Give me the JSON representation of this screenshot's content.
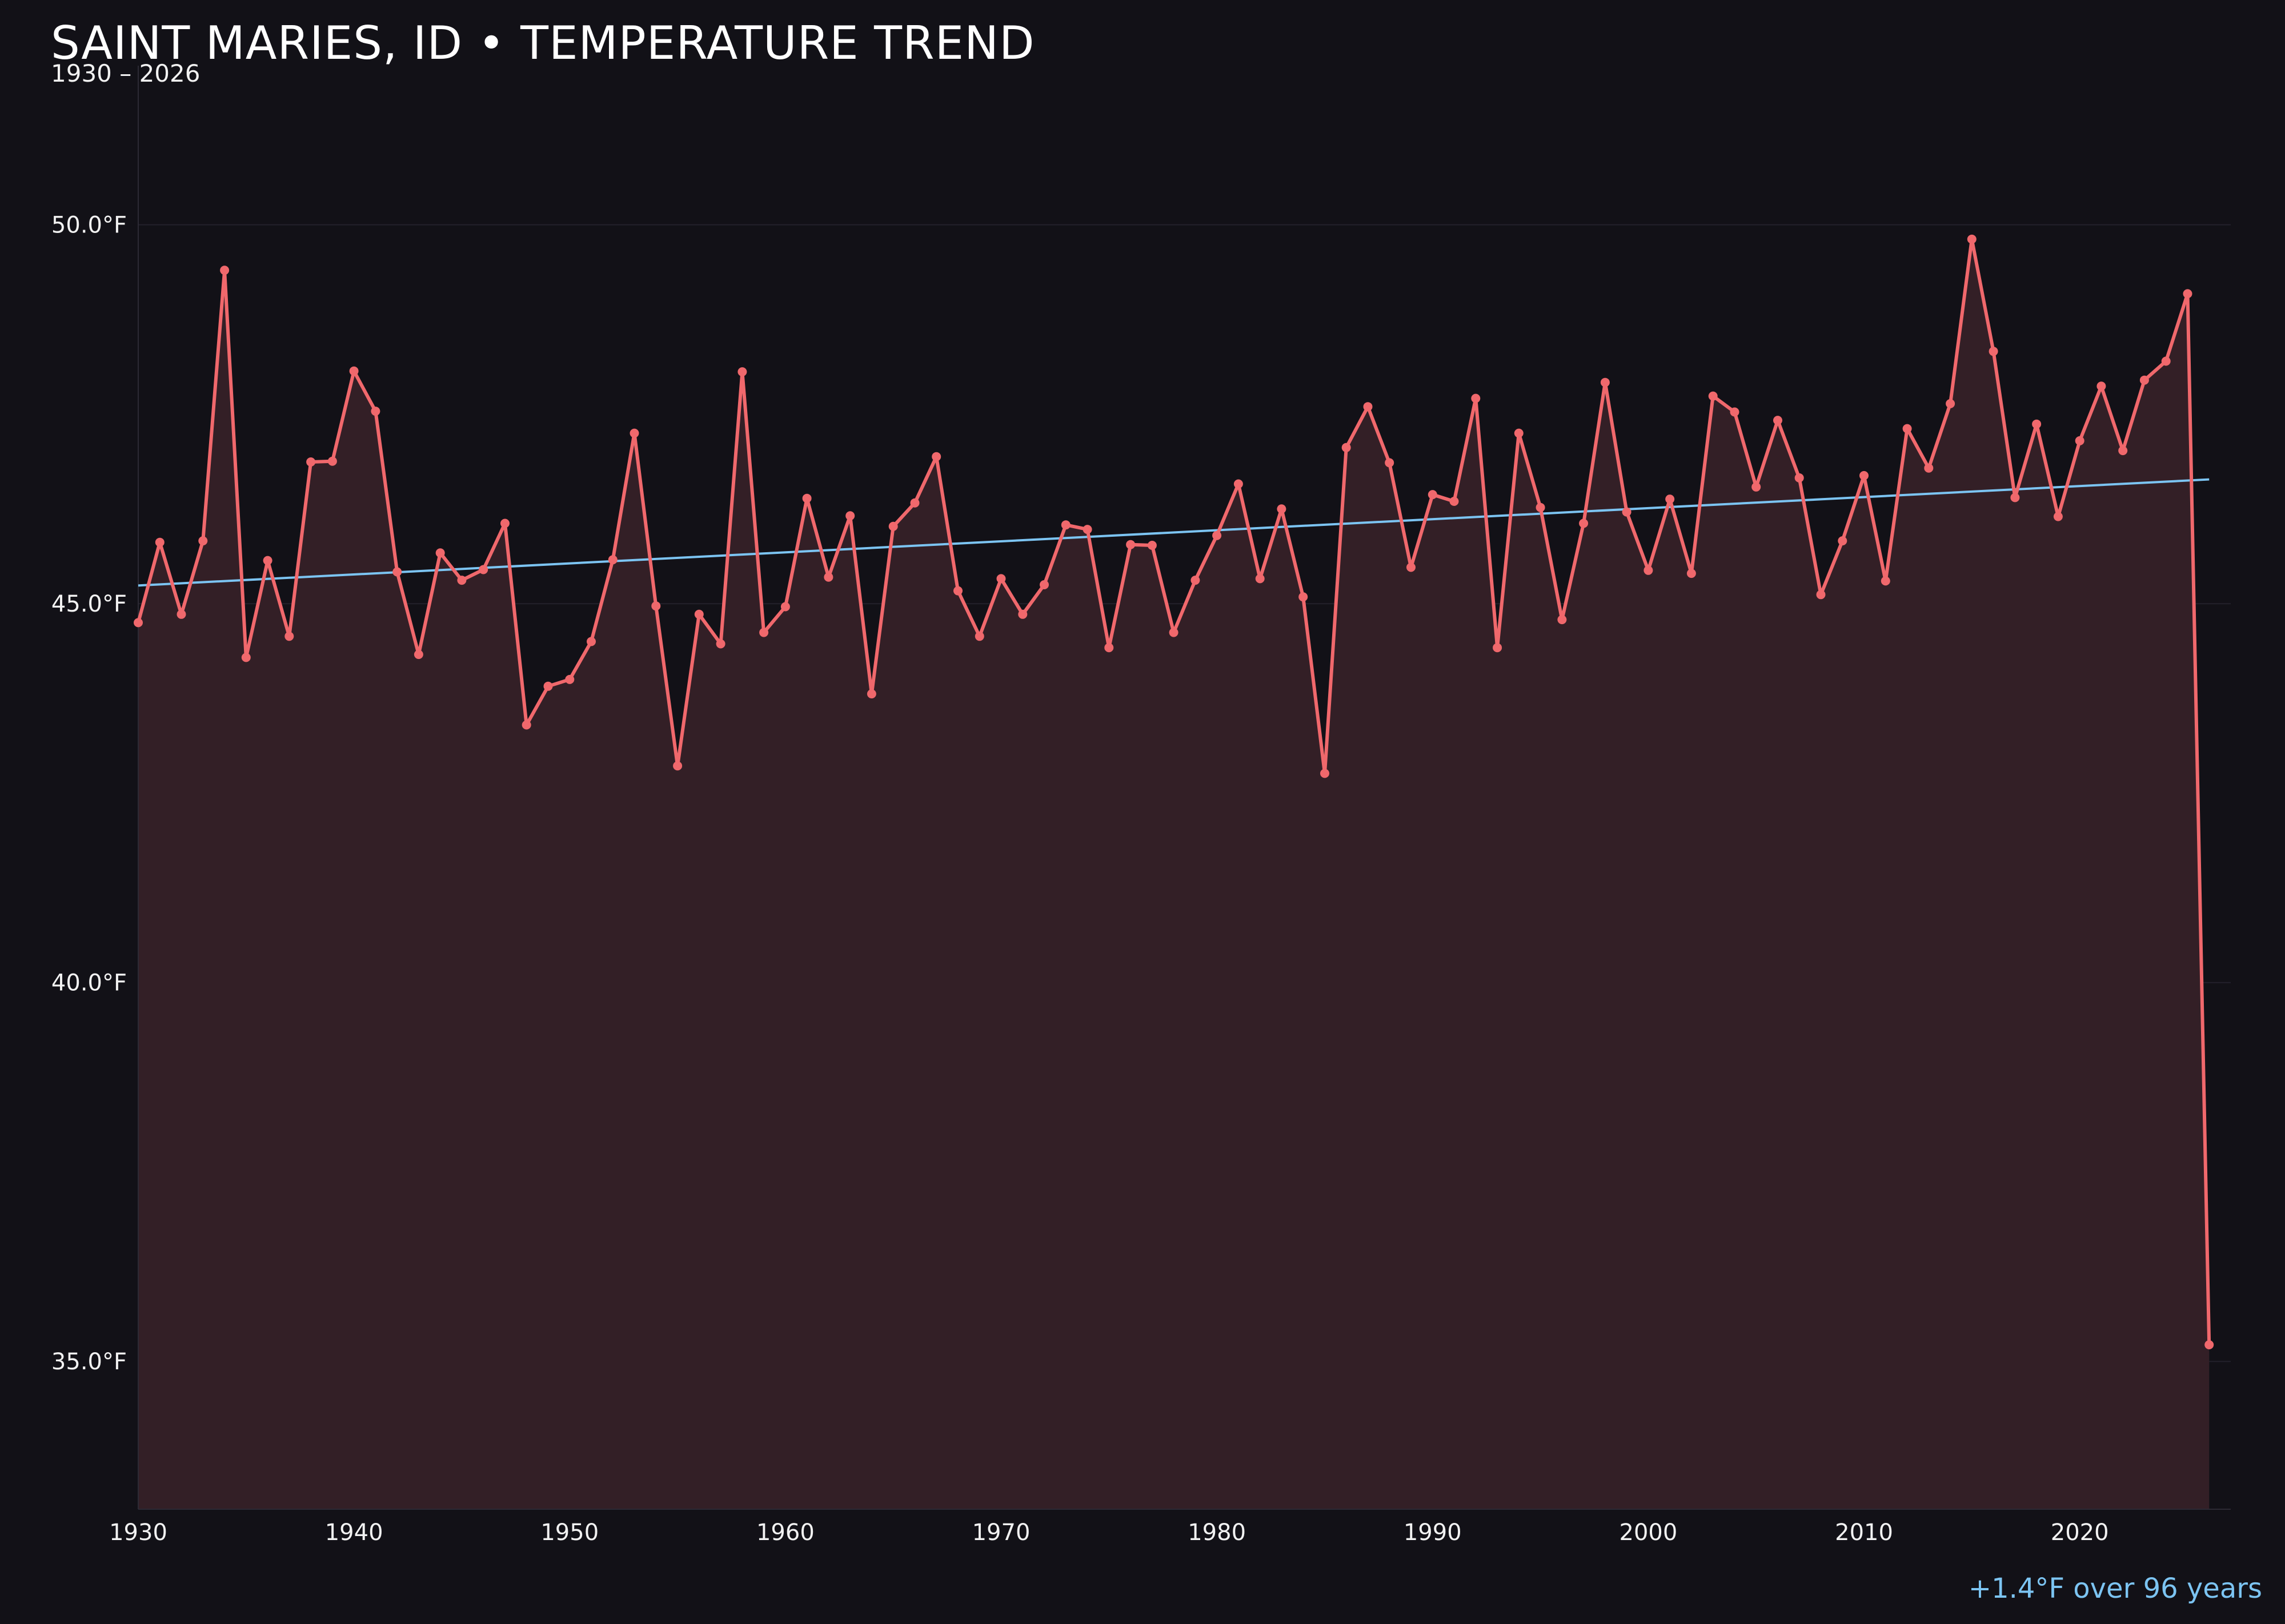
{
  "header": {
    "title": "SAINT MARIES, ID • TEMPERATURE TREND",
    "subtitle": "1930 – 2026"
  },
  "annotation": "+1.4°F over 96 years",
  "colors": {
    "background": "#121117",
    "series": "#f0686c",
    "area_fill": "#331f26",
    "trend": "#7cc4f2",
    "grid": "#23212b"
  },
  "chart_data": {
    "type": "line",
    "title": "SAINT MARIES, ID • TEMPERATURE TREND",
    "subtitle": "1930 – 2026",
    "xlabel": "",
    "ylabel": "",
    "xlim": [
      1930,
      2027
    ],
    "ylim": [
      33.05,
      52.1
    ],
    "x_ticks": [
      1930,
      1940,
      1950,
      1960,
      1970,
      1980,
      1990,
      2000,
      2010,
      2020
    ],
    "y_ticks": [
      35.0,
      40.0,
      45.0,
      50.0
    ],
    "y_tick_labels": [
      "35.0°F",
      "40.0°F",
      "45.0°F",
      "50.0°F"
    ],
    "grid": "horizontal",
    "area_fill": true,
    "series": [
      {
        "x": [
          1930,
          1931,
          1932,
          1933,
          1934,
          1935,
          1936,
          1937,
          1938,
          1939,
          1940,
          1941,
          1942,
          1943,
          1944,
          1945,
          1946,
          1947,
          1948,
          1949,
          1950,
          1951,
          1952,
          1953,
          1954,
          1955,
          1956,
          1957,
          1958,
          1959,
          1960,
          1961,
          1962,
          1963,
          1964,
          1965,
          1966,
          1967,
          1968,
          1969,
          1970,
          1971,
          1972,
          1973,
          1974,
          1975,
          1976,
          1977,
          1978,
          1979,
          1980,
          1981,
          1982,
          1983,
          1984,
          1985,
          1986,
          1987,
          1988,
          1989,
          1990,
          1991,
          1992,
          1993,
          1994,
          1995,
          1996,
          1997,
          1998,
          1999,
          2000,
          2001,
          2002,
          2003,
          2004,
          2005,
          2006,
          2007,
          2008,
          2009,
          2010,
          2011,
          2012,
          2013,
          2014,
          2015,
          2016,
          2017,
          2018,
          2019,
          2020,
          2021,
          2022,
          2023,
          2024,
          2025,
          2026
        ],
        "values": [
          44.75,
          45.81,
          44.86,
          45.83,
          49.4,
          44.29,
          45.57,
          44.57,
          46.87,
          46.88,
          48.07,
          47.54,
          45.42,
          44.33,
          45.67,
          45.31,
          45.45,
          46.06,
          43.4,
          43.91,
          44.0,
          44.5,
          45.58,
          47.25,
          44.97,
          42.86,
          44.86,
          44.47,
          48.06,
          44.62,
          44.96,
          46.39,
          45.35,
          46.16,
          43.81,
          46.02,
          46.33,
          46.94,
          45.17,
          44.57,
          45.33,
          44.86,
          45.25,
          46.04,
          45.98,
          44.42,
          45.78,
          45.77,
          44.62,
          45.31,
          45.9,
          46.58,
          45.33,
          46.25,
          45.09,
          42.76,
          47.06,
          47.6,
          46.86,
          45.48,
          46.44,
          46.35,
          47.71,
          44.42,
          47.25,
          46.27,
          44.79,
          46.06,
          47.92,
          46.21,
          45.44,
          46.38,
          45.4,
          47.74,
          47.53,
          46.54,
          47.42,
          46.66,
          45.12,
          45.83,
          46.69,
          45.3,
          47.31,
          46.79,
          47.64,
          49.81,
          48.33,
          46.4,
          47.37,
          46.15,
          47.15,
          47.87,
          47.02,
          47.95,
          48.2,
          49.09,
          35.22
        ]
      },
      {
        "type": "trend",
        "x": [
          1930,
          2026
        ],
        "values": [
          45.24,
          46.64
        ]
      }
    ]
  }
}
